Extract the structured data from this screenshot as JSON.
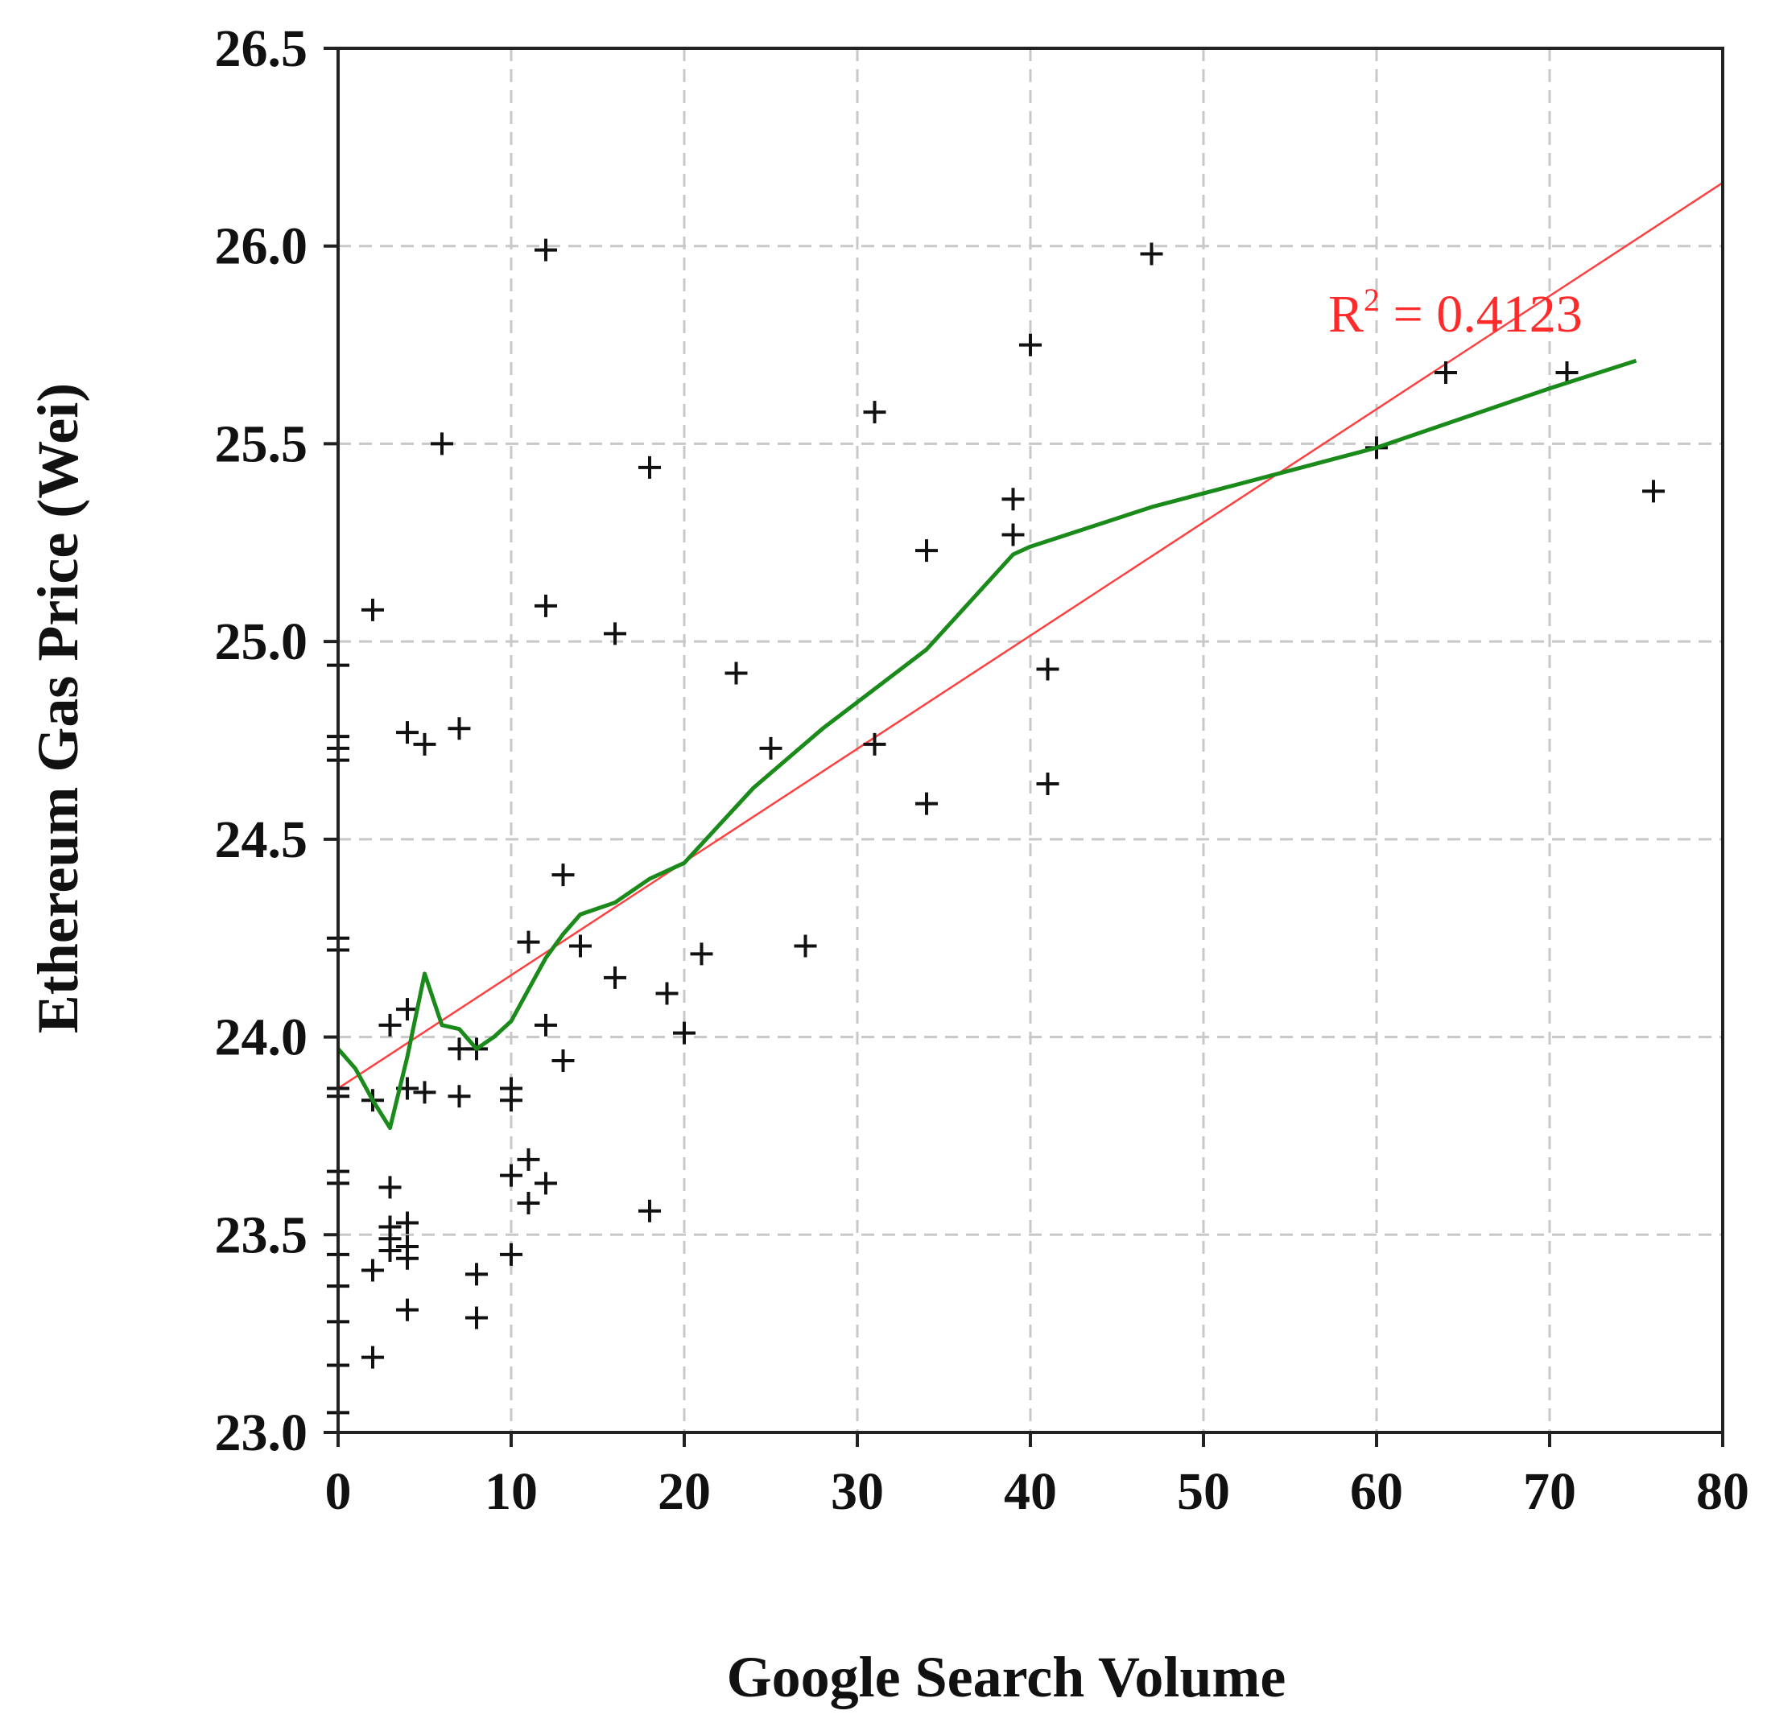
{
  "chart_data": {
    "type": "scatter",
    "xlabel": "Google Search Volume",
    "ylabel": "Ethereum Gas Price (Wei)",
    "xlim": [
      0,
      80
    ],
    "ylim": [
      23.0,
      26.5
    ],
    "x_ticks": [
      0,
      10,
      20,
      30,
      40,
      50,
      60,
      70,
      80
    ],
    "y_ticks": [
      23.0,
      23.5,
      24.0,
      24.5,
      25.0,
      25.5,
      26.0,
      26.5
    ],
    "x_tick_labels": [
      "0",
      "10",
      "20",
      "30",
      "40",
      "50",
      "60",
      "70",
      "80"
    ],
    "y_tick_labels": [
      "23.0",
      "23.5",
      "24.0",
      "24.5",
      "25.0",
      "25.5",
      "26.0",
      "26.5"
    ],
    "grid": true,
    "grid_style": "dashed",
    "annotation": {
      "base": "R",
      "sup": "2",
      "rest": " = 0.4123"
    },
    "colors": {
      "points": "#111111",
      "trend_line": "#ff4040",
      "smooth_line": "#1a8a1a",
      "annotation": "#ff2a2a",
      "grid": "#c8c8c8"
    },
    "points": [
      [
        0,
        24.94
      ],
      [
        0,
        24.76
      ],
      [
        0,
        24.73
      ],
      [
        0,
        24.7
      ],
      [
        0,
        24.25
      ],
      [
        0,
        24.22
      ],
      [
        0,
        23.87
      ],
      [
        0,
        23.85
      ],
      [
        0,
        23.66
      ],
      [
        0,
        23.63
      ],
      [
        0,
        23.45
      ],
      [
        0,
        23.37
      ],
      [
        0,
        23.28
      ],
      [
        0,
        23.17
      ],
      [
        0,
        23.05
      ],
      [
        2,
        25.08
      ],
      [
        2,
        23.84
      ],
      [
        2,
        23.41
      ],
      [
        2,
        23.19
      ],
      [
        3,
        24.03
      ],
      [
        3,
        23.62
      ],
      [
        3,
        23.52
      ],
      [
        3,
        23.49
      ],
      [
        3,
        23.46
      ],
      [
        4,
        24.07
      ],
      [
        4,
        24.77
      ],
      [
        4,
        23.87
      ],
      [
        4,
        23.53
      ],
      [
        4,
        23.47
      ],
      [
        4,
        23.44
      ],
      [
        4,
        23.31
      ],
      [
        5,
        24.74
      ],
      [
        5,
        23.86
      ],
      [
        6,
        25.5
      ],
      [
        7,
        24.78
      ],
      [
        7,
        23.97
      ],
      [
        7,
        23.85
      ],
      [
        8,
        23.97
      ],
      [
        8,
        23.4
      ],
      [
        8,
        23.29
      ],
      [
        10,
        23.87
      ],
      [
        10,
        23.84
      ],
      [
        10,
        23.65
      ],
      [
        10,
        23.45
      ],
      [
        11,
        24.24
      ],
      [
        11,
        23.69
      ],
      [
        11,
        23.58
      ],
      [
        12,
        25.99
      ],
      [
        12,
        25.09
      ],
      [
        12,
        24.03
      ],
      [
        12,
        23.63
      ],
      [
        13,
        24.41
      ],
      [
        13,
        23.94
      ],
      [
        14,
        24.23
      ],
      [
        16,
        25.02
      ],
      [
        16,
        24.15
      ],
      [
        18,
        25.44
      ],
      [
        18,
        23.56
      ],
      [
        19,
        24.11
      ],
      [
        20,
        24.01
      ],
      [
        21,
        24.21
      ],
      [
        23,
        24.92
      ],
      [
        25,
        24.73
      ],
      [
        27,
        24.23
      ],
      [
        31,
        25.58
      ],
      [
        31,
        24.74
      ],
      [
        34,
        25.23
      ],
      [
        34,
        24.59
      ],
      [
        39,
        25.36
      ],
      [
        39,
        25.27
      ],
      [
        40,
        25.75
      ],
      [
        41,
        24.93
      ],
      [
        41,
        24.64
      ],
      [
        47,
        25.98
      ],
      [
        60,
        25.49
      ],
      [
        64,
        25.68
      ],
      [
        71,
        25.68
      ],
      [
        76,
        25.38
      ]
    ],
    "trend_line": {
      "x": [
        0,
        80
      ],
      "y": [
        23.87,
        26.16
      ]
    },
    "smooth_line": {
      "x": [
        0,
        1,
        2,
        3,
        4,
        5,
        6,
        7,
        8,
        9,
        10,
        11,
        12,
        13,
        14,
        16,
        18,
        20,
        24,
        28,
        34,
        39,
        40,
        47,
        60,
        70,
        75
      ],
      "y": [
        23.97,
        23.92,
        23.84,
        23.77,
        23.95,
        24.16,
        24.03,
        24.02,
        23.97,
        24.0,
        24.04,
        24.12,
        24.2,
        24.26,
        24.31,
        24.34,
        24.4,
        24.44,
        24.63,
        24.78,
        24.98,
        25.22,
        25.24,
        25.34,
        25.49,
        25.64,
        25.71
      ]
    }
  }
}
